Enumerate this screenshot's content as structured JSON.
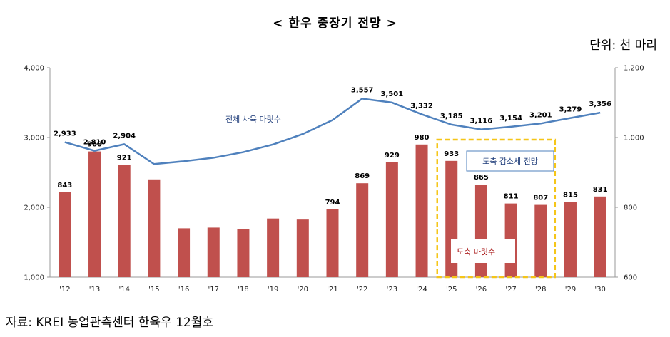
{
  "title": "< 한우 중장기 전망 >",
  "unit": "단위: 천 마리",
  "source": "자료: KREI 농업관측센터 한육우 12월호",
  "colors": {
    "bar": "#c0504d",
    "line": "#4f81bd",
    "highlight": "#f5c518"
  },
  "chart_data": {
    "type": "bar+line",
    "categories": [
      "'12",
      "'13",
      "'14",
      "'15",
      "'16",
      "'17",
      "'18",
      "'19",
      "'20",
      "'21",
      "'22",
      "'23",
      "'24",
      "'25",
      "'26",
      "'27",
      "'28",
      "'29",
      "'30"
    ],
    "series": [
      {
        "name": "도축 마릿수",
        "type": "bar",
        "axis": "right",
        "values": [
          843,
          960,
          921,
          880,
          740,
          742,
          737,
          768,
          765,
          794,
          869,
          929,
          980,
          933,
          865,
          811,
          807,
          815,
          831
        ],
        "labels": [
          "843",
          "960",
          "921",
          "",
          "",
          "",
          "",
          "",
          "",
          "794",
          "869",
          "929",
          "980",
          "933",
          "865",
          "811",
          "807",
          "815",
          "831"
        ]
      },
      {
        "name": "전체 사육 마릿수",
        "type": "line",
        "axis": "left",
        "values": [
          2933,
          2810,
          2904,
          2620,
          2660,
          2710,
          2790,
          2900,
          3050,
          3250,
          3557,
          3501,
          3332,
          3185,
          3116,
          3154,
          3201,
          3279,
          3356
        ],
        "labels": [
          "2,933",
          "2,810",
          "2,904",
          "",
          "",
          "",
          "",
          "",
          "",
          "",
          "3,557",
          "3,501",
          "3,332",
          "3,185",
          "3,116",
          "3,154",
          "3,201",
          "3,279",
          "3,356"
        ]
      }
    ],
    "y_left": {
      "ticks": [
        "1,000",
        "2,000",
        "3,000",
        "4,000"
      ],
      "range": [
        1000,
        4000
      ]
    },
    "y_right": {
      "ticks": [
        "600",
        "800",
        "1,000",
        "1,200"
      ],
      "range": [
        600,
        1200
      ]
    },
    "annotation": "도축 감소세 전망",
    "highlight_categories": [
      "'25",
      "'28"
    ]
  }
}
